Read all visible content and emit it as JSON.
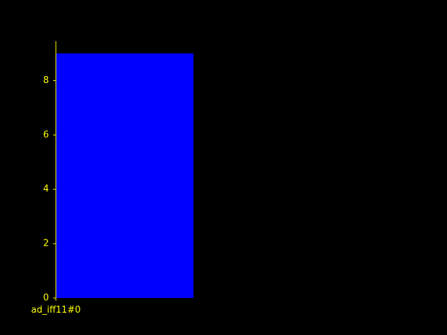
{
  "colors": {
    "background": "#000000",
    "axis": "#ffff00",
    "text": "#ffff00",
    "bar": "#0000ff"
  },
  "chart_data": {
    "type": "bar",
    "categories": [
      "ad_iff11#0"
    ],
    "values": [
      9
    ],
    "title": "",
    "xlabel": "",
    "ylabel": "",
    "ylim": [
      0,
      9.45
    ],
    "yticks": [
      0,
      2,
      4,
      6,
      8
    ],
    "ytick_labels": [
      "0",
      "2",
      "4",
      "6",
      "8"
    ],
    "xtick_labels": [
      "ad_iff11#0"
    ],
    "grid": false,
    "legend": "none"
  }
}
